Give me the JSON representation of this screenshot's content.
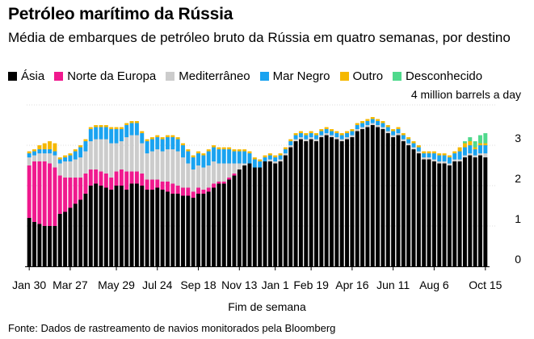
{
  "header": {
    "title": "Petróleo marítimo da Rússia",
    "subtitle": "Média de embarques de petróleo bruto da Rússia em quatro semanas, por destino"
  },
  "legend": [
    {
      "label": "Ásia",
      "color": "#000000"
    },
    {
      "label": "Norte da Europa",
      "color": "#f0198e"
    },
    {
      "label": "Mediterrâneo",
      "color": "#cccccc"
    },
    {
      "label": "Mar Negro",
      "color": "#1aa3f0"
    },
    {
      "label": "Outro",
      "color": "#f5b800"
    },
    {
      "label": "Desconhecido",
      "color": "#4fd98c"
    }
  ],
  "axis": {
    "unit_label": "4 million barrels a day",
    "x_title": "Fim de semana"
  },
  "footer": {
    "source": "Fonte: Dados de rastreamento de navios monitorados pela Bloomberg"
  },
  "chart_data": {
    "type": "bar",
    "stacked": true,
    "title": "Petróleo marítimo da Rússia",
    "subtitle": "Média de embarques de petróleo bruto da Rússia em quatro semanas, por destino",
    "xlabel": "Fim de semana",
    "ylabel": "4 million barrels a day",
    "ylim": [
      0,
      4
    ],
    "yticks": [
      0,
      1,
      2,
      3,
      4
    ],
    "x_tick_labels": [
      "Jan 30",
      "Mar 27",
      "May 29",
      "Jul 24",
      "Sep 18",
      "Nov 13",
      "Jan 1",
      "Feb 19",
      "Apr 16",
      "Jun 11",
      "Aug 6",
      "Oct 15"
    ],
    "x_tick_bar_index": [
      0,
      8,
      17,
      25,
      33,
      41,
      48,
      55,
      63,
      71,
      79,
      89
    ],
    "legend_position": "top",
    "grid": "horizontal",
    "series": [
      {
        "name": "Ásia",
        "color": "#000000",
        "values": [
          1.2,
          1.1,
          1.05,
          1.0,
          1.0,
          1.0,
          1.3,
          1.35,
          1.45,
          1.55,
          1.65,
          1.8,
          2.0,
          2.05,
          2.0,
          1.95,
          1.9,
          2.0,
          2.0,
          1.9,
          2.05,
          2.05,
          2.0,
          1.9,
          1.9,
          1.95,
          1.9,
          1.85,
          1.8,
          1.8,
          1.75,
          1.75,
          1.7,
          1.8,
          1.8,
          1.85,
          1.95,
          2.05,
          2.05,
          2.15,
          2.25,
          2.4,
          2.5,
          2.55,
          2.45,
          2.45,
          2.6,
          2.6,
          2.55,
          2.6,
          2.75,
          2.95,
          3.1,
          3.15,
          3.1,
          3.15,
          3.1,
          3.2,
          3.25,
          3.2,
          3.15,
          3.1,
          3.15,
          3.2,
          3.35,
          3.4,
          3.45,
          3.5,
          3.45,
          3.4,
          3.3,
          3.2,
          3.25,
          3.1,
          3.0,
          2.9,
          2.8,
          2.65,
          2.65,
          2.6,
          2.55,
          2.55,
          2.5,
          2.6,
          2.6,
          2.7,
          2.75,
          2.7,
          2.75,
          2.7
        ]
      },
      {
        "name": "Norte da Europa",
        "color": "#f0198e",
        "values": [
          1.3,
          1.5,
          1.55,
          1.6,
          1.55,
          1.45,
          0.95,
          0.85,
          0.75,
          0.65,
          0.55,
          0.5,
          0.4,
          0.35,
          0.35,
          0.35,
          0.3,
          0.35,
          0.4,
          0.45,
          0.3,
          0.3,
          0.3,
          0.25,
          0.25,
          0.2,
          0.2,
          0.25,
          0.25,
          0.2,
          0.2,
          0.2,
          0.15,
          0.15,
          0.1,
          0.1,
          0.1,
          0.05,
          0.05,
          0.05,
          0.05,
          0.0,
          0.0,
          0.0,
          0.0,
          0.0,
          0.0,
          0.0,
          0.0,
          0.0,
          0.0,
          0.0,
          0.0,
          0.0,
          0.0,
          0.0,
          0.0,
          0.0,
          0.0,
          0.0,
          0.0,
          0.0,
          0.0,
          0.0,
          0.0,
          0.0,
          0.0,
          0.0,
          0.0,
          0.0,
          0.0,
          0.0,
          0.0,
          0.0,
          0.0,
          0.0,
          0.0,
          0.0,
          0.0,
          0.0,
          0.0,
          0.0,
          0.0,
          0.0,
          0.0,
          0.0,
          0.0,
          0.0,
          0.0,
          0.0
        ]
      },
      {
        "name": "Mediterrâneo",
        "color": "#cccccc",
        "values": [
          0.2,
          0.15,
          0.2,
          0.2,
          0.25,
          0.3,
          0.3,
          0.4,
          0.4,
          0.45,
          0.5,
          0.55,
          0.7,
          0.75,
          0.8,
          0.85,
          0.85,
          0.7,
          0.7,
          0.85,
          0.9,
          0.9,
          0.75,
          0.65,
          0.7,
          0.75,
          0.75,
          0.8,
          0.85,
          0.85,
          0.75,
          0.6,
          0.55,
          0.55,
          0.55,
          0.55,
          0.55,
          0.45,
          0.45,
          0.35,
          0.25,
          0.15,
          0.05,
          0.0,
          0.0,
          0.0,
          0.0,
          0.05,
          0.05,
          0.05,
          0.05,
          0.05,
          0.05,
          0.05,
          0.05,
          0.05,
          0.05,
          0.05,
          0.05,
          0.05,
          0.05,
          0.05,
          0.05,
          0.05,
          0.05,
          0.05,
          0.05,
          0.05,
          0.05,
          0.05,
          0.05,
          0.05,
          0.05,
          0.05,
          0.05,
          0.05,
          0.05,
          0.05,
          0.05,
          0.05,
          0.05,
          0.05,
          0.05,
          0.05,
          0.05,
          0.05,
          0.05,
          0.05,
          0.05,
          0.1
        ]
      },
      {
        "name": "Mar Negro",
        "color": "#1aa3f0",
        "values": [
          0.1,
          0.1,
          0.1,
          0.1,
          0.1,
          0.1,
          0.1,
          0.1,
          0.15,
          0.2,
          0.25,
          0.25,
          0.3,
          0.3,
          0.3,
          0.3,
          0.35,
          0.35,
          0.3,
          0.3,
          0.3,
          0.3,
          0.25,
          0.3,
          0.3,
          0.3,
          0.3,
          0.3,
          0.3,
          0.3,
          0.3,
          0.3,
          0.3,
          0.3,
          0.3,
          0.35,
          0.35,
          0.35,
          0.35,
          0.35,
          0.3,
          0.3,
          0.3,
          0.25,
          0.2,
          0.15,
          0.1,
          0.1,
          0.1,
          0.1,
          0.1,
          0.1,
          0.1,
          0.1,
          0.1,
          0.1,
          0.1,
          0.1,
          0.1,
          0.1,
          0.1,
          0.1,
          0.1,
          0.1,
          0.1,
          0.1,
          0.1,
          0.1,
          0.1,
          0.1,
          0.1,
          0.1,
          0.1,
          0.1,
          0.1,
          0.1,
          0.1,
          0.1,
          0.1,
          0.15,
          0.15,
          0.15,
          0.15,
          0.15,
          0.2,
          0.2,
          0.2,
          0.15,
          0.2,
          0.2
        ]
      },
      {
        "name": "Outro",
        "color": "#f5b800",
        "values": [
          0.05,
          0.05,
          0.1,
          0.15,
          0.2,
          0.2,
          0.05,
          0.05,
          0.05,
          0.05,
          0.05,
          0.05,
          0.05,
          0.05,
          0.05,
          0.05,
          0.05,
          0.05,
          0.05,
          0.05,
          0.05,
          0.05,
          0.05,
          0.05,
          0.05,
          0.05,
          0.05,
          0.05,
          0.05,
          0.05,
          0.05,
          0.05,
          0.05,
          0.05,
          0.05,
          0.05,
          0.05,
          0.05,
          0.05,
          0.05,
          0.05,
          0.05,
          0.05,
          0.05,
          0.05,
          0.05,
          0.05,
          0.05,
          0.05,
          0.05,
          0.05,
          0.05,
          0.05,
          0.05,
          0.05,
          0.05,
          0.05,
          0.05,
          0.05,
          0.05,
          0.05,
          0.05,
          0.05,
          0.05,
          0.05,
          0.05,
          0.05,
          0.05,
          0.05,
          0.05,
          0.05,
          0.05,
          0.05,
          0.05,
          0.05,
          0.05,
          0.05,
          0.05,
          0.05,
          0.05,
          0.05,
          0.05,
          0.05,
          0.05,
          0.1,
          0.1,
          0.1,
          0.05,
          0.05,
          0.05
        ]
      },
      {
        "name": "Desconhecido",
        "color": "#4fd98c",
        "values": [
          0.0,
          0.0,
          0.0,
          0.0,
          0.0,
          0.0,
          0.0,
          0.0,
          0.0,
          0.0,
          0.0,
          0.0,
          0.0,
          0.0,
          0.0,
          0.0,
          0.0,
          0.0,
          0.0,
          0.0,
          0.0,
          0.0,
          0.0,
          0.0,
          0.0,
          0.0,
          0.0,
          0.0,
          0.0,
          0.0,
          0.0,
          0.0,
          0.0,
          0.0,
          0.0,
          0.0,
          0.0,
          0.0,
          0.0,
          0.0,
          0.0,
          0.0,
          0.0,
          0.0,
          0.0,
          0.0,
          0.0,
          0.0,
          0.0,
          0.0,
          0.0,
          0.0,
          0.0,
          0.0,
          0.0,
          0.0,
          0.0,
          0.0,
          0.0,
          0.0,
          0.0,
          0.0,
          0.0,
          0.0,
          0.0,
          0.0,
          0.0,
          0.0,
          0.0,
          0.0,
          0.0,
          0.0,
          0.0,
          0.0,
          0.0,
          0.0,
          0.0,
          0.0,
          0.0,
          0.0,
          0.0,
          0.0,
          0.0,
          0.0,
          0.0,
          0.05,
          0.1,
          0.15,
          0.2,
          0.25
        ]
      }
    ]
  }
}
